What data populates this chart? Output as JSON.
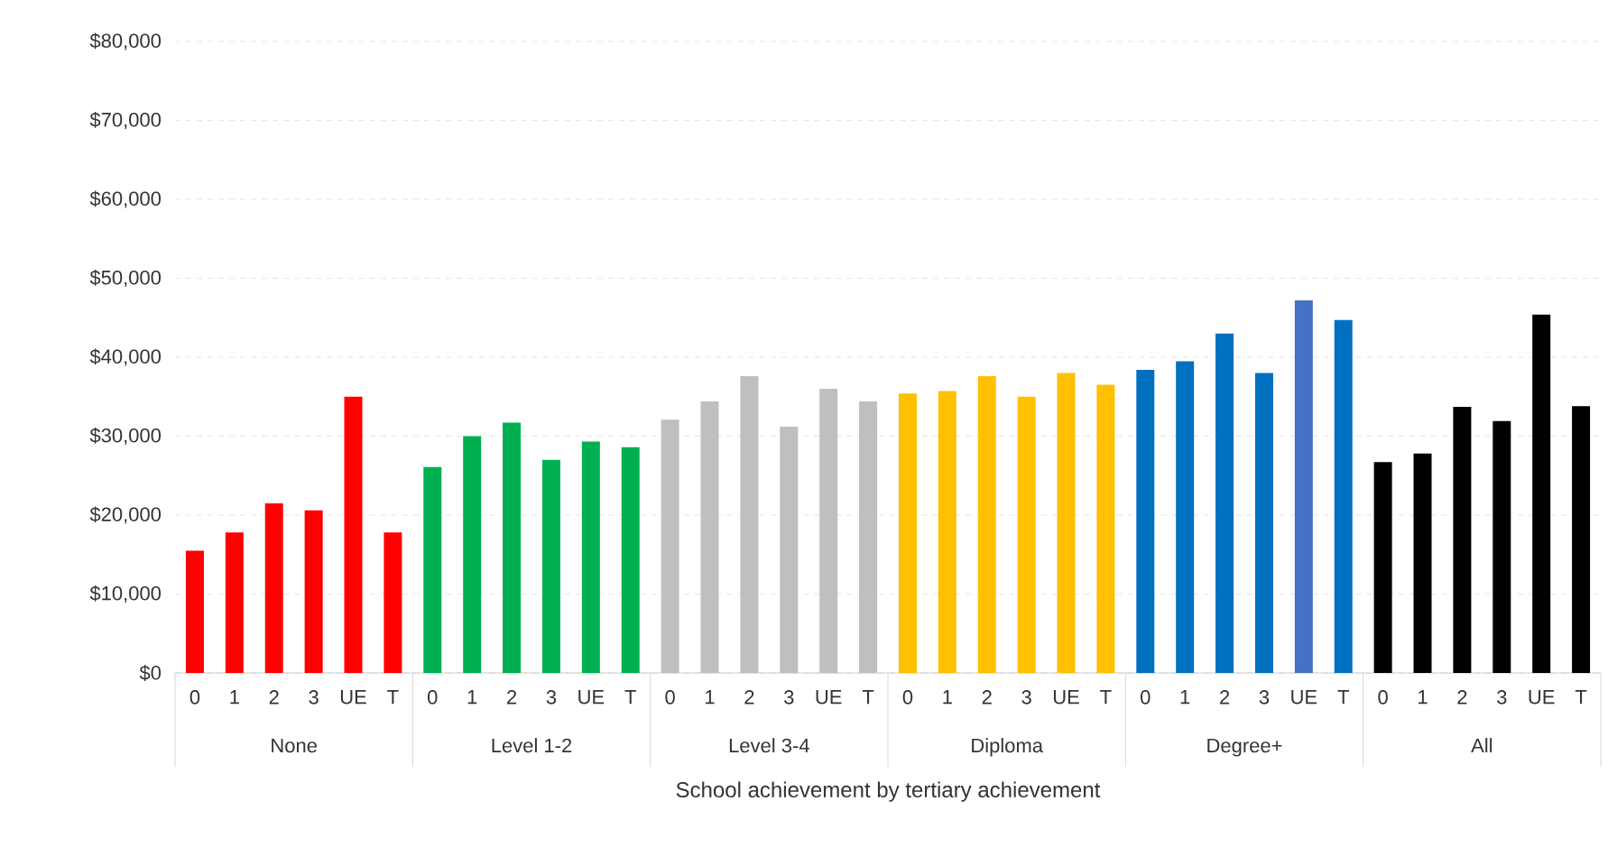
{
  "chart_data": {
    "type": "bar",
    "xlabel": "School achievement by tertiary achievement",
    "categories": [
      "0",
      "1",
      "2",
      "3",
      "UE",
      "T",
      "0",
      "1",
      "2",
      "3",
      "UE",
      "T",
      "0",
      "1",
      "2",
      "3",
      "UE",
      "T",
      "0",
      "1",
      "2",
      "3",
      "UE",
      "T",
      "0",
      "1",
      "2",
      "3",
      "UE",
      "T",
      "0",
      "1",
      "2",
      "3",
      "UE",
      "T"
    ],
    "values": [
      15500,
      17800,
      21500,
      20600,
      35000,
      17800,
      26100,
      30000,
      31700,
      27000,
      29300,
      28600,
      32100,
      34400,
      37600,
      31200,
      36000,
      34400,
      35400,
      35700,
      37600,
      35000,
      38000,
      36500,
      38400,
      39500,
      43000,
      38000,
      47200,
      44700,
      26700,
      27800,
      33700,
      31900,
      45400,
      33800
    ],
    "colors": [
      "#ff0000",
      "#ff0000",
      "#ff0000",
      "#ff0000",
      "#ff0000",
      "#ff0000",
      "#00b050",
      "#00b050",
      "#00b050",
      "#00b050",
      "#00b050",
      "#00b050",
      "#bfbfbf",
      "#bfbfbf",
      "#bfbfbf",
      "#bfbfbf",
      "#bfbfbf",
      "#bfbfbf",
      "#ffc000",
      "#ffc000",
      "#ffc000",
      "#ffc000",
      "#ffc000",
      "#ffc000",
      "#0070c0",
      "#0070c0",
      "#0070c0",
      "#0070c0",
      "#4472c4",
      "#0070c0",
      "#000000",
      "#000000",
      "#000000",
      "#000000",
      "#000000",
      "#000000"
    ],
    "annotations": [
      "None",
      "Level 1-2",
      "Level 3-4",
      "Diploma",
      "Degree+",
      "All"
    ],
    "ylim": [
      0,
      80000
    ],
    "yticks": [
      {
        "value": 0,
        "label": "$0"
      },
      {
        "value": 10000,
        "label": "$10,000"
      },
      {
        "value": 20000,
        "label": "$20,000"
      },
      {
        "value": 30000,
        "label": "$30,000"
      },
      {
        "value": 40000,
        "label": "$40,000"
      },
      {
        "value": 50000,
        "label": "$50,000"
      },
      {
        "value": 60000,
        "label": "$60,000"
      },
      {
        "value": 70000,
        "label": "$70,000"
      },
      {
        "value": 80000,
        "label": "$80,000"
      }
    ],
    "grid": "y"
  }
}
